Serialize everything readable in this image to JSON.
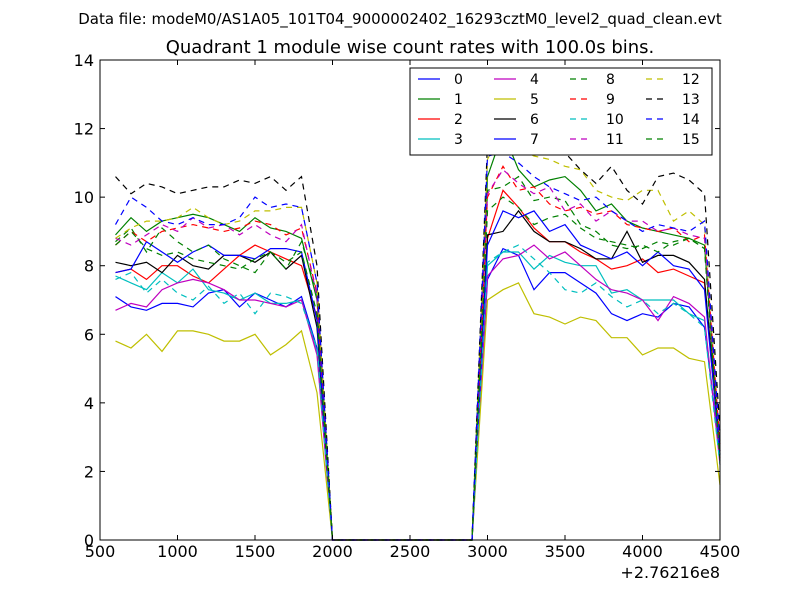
{
  "chart_data": {
    "type": "line",
    "suptitle": "Data file: modeM0/AS1A05_101T04_9000002402_16293cztM0_level2_quad_clean.evt",
    "title": "Quadrant 1 module wise count rates with 100.0s bins.",
    "xlabel": "",
    "ylabel": "",
    "x_offset_label": "+2.76216e8",
    "xlim": [
      500,
      4500
    ],
    "ylim": [
      0,
      14
    ],
    "xticks": [
      "500",
      "1000",
      "1500",
      "2000",
      "2500",
      "3000",
      "3500",
      "4000",
      "4500"
    ],
    "yticks": [
      "0",
      "2",
      "4",
      "6",
      "8",
      "10",
      "12",
      "14"
    ],
    "legend_position": "top-right",
    "legend_columns": 4,
    "x": [
      600,
      700,
      800,
      900,
      1000,
      1100,
      1200,
      1300,
      1400,
      1500,
      1600,
      1700,
      1800,
      1900,
      2000,
      2100,
      2200,
      2300,
      2400,
      2500,
      2600,
      2700,
      2800,
      2900,
      3000,
      3100,
      3200,
      3300,
      3400,
      3500,
      3600,
      3700,
      3800,
      3900,
      4000,
      4100,
      4200,
      4300,
      4400,
      4500
    ],
    "series": [
      {
        "name": "0",
        "color": "#0000ff",
        "style": "solid",
        "values": [
          7.1,
          6.8,
          6.7,
          6.9,
          6.9,
          6.8,
          7.2,
          7.3,
          6.8,
          7.2,
          7.0,
          6.8,
          7.1,
          5.6,
          0,
          0,
          0,
          0,
          0,
          0,
          0,
          0,
          0,
          0,
          7.6,
          8.5,
          8.3,
          7.3,
          7.8,
          7.8,
          7.5,
          7.2,
          6.6,
          6.4,
          6.6,
          6.5,
          6.9,
          6.8,
          6.2,
          2.5
        ]
      },
      {
        "name": "1",
        "color": "#008000",
        "style": "solid",
        "values": [
          8.9,
          9.4,
          9.0,
          9.3,
          9.4,
          9.5,
          9.4,
          9.2,
          9.0,
          9.4,
          9.1,
          9.0,
          8.8,
          7.0,
          0,
          0,
          0,
          0,
          0,
          0,
          0,
          0,
          0,
          0,
          10.6,
          11.9,
          10.8,
          10.3,
          10.5,
          10.6,
          10.2,
          9.6,
          9.8,
          9.3,
          9.1,
          9.0,
          8.9,
          8.8,
          8.6,
          2.5
        ]
      },
      {
        "name": "2",
        "color": "#ff0000",
        "style": "solid",
        "values": [
          7.8,
          7.9,
          7.6,
          8.0,
          8.0,
          7.7,
          7.5,
          7.9,
          8.3,
          8.6,
          8.4,
          8.2,
          8.0,
          6.5,
          0,
          0,
          0,
          0,
          0,
          0,
          0,
          0,
          0,
          0,
          8.8,
          10.2,
          9.7,
          9.1,
          8.7,
          8.7,
          8.4,
          8.2,
          7.9,
          8.0,
          8.2,
          7.8,
          7.9,
          7.7,
          7.5,
          2.4
        ]
      },
      {
        "name": "3",
        "color": "#00bfbf",
        "style": "solid",
        "values": [
          7.7,
          7.5,
          7.3,
          7.8,
          7.5,
          7.9,
          7.3,
          7.2,
          7.0,
          7.2,
          6.9,
          6.9,
          7.0,
          5.5,
          0,
          0,
          0,
          0,
          0,
          0,
          0,
          0,
          0,
          0,
          8.0,
          8.4,
          8.4,
          7.9,
          8.3,
          8.1,
          8.0,
          8.0,
          7.2,
          7.3,
          7.0,
          7.0,
          7.0,
          6.6,
          6.4,
          2.3
        ]
      },
      {
        "name": "4",
        "color": "#bf00bf",
        "style": "solid",
        "values": [
          6.7,
          6.9,
          6.8,
          7.3,
          7.5,
          7.6,
          7.5,
          7.3,
          7.0,
          7.0,
          6.9,
          6.8,
          7.0,
          5.4,
          0,
          0,
          0,
          0,
          0,
          0,
          0,
          0,
          0,
          0,
          7.7,
          8.2,
          8.3,
          8.6,
          8.2,
          8.4,
          8.0,
          7.6,
          7.3,
          7.2,
          7.0,
          6.4,
          7.1,
          6.9,
          6.5,
          2.2
        ]
      },
      {
        "name": "5",
        "color": "#bfbf00",
        "style": "solid",
        "values": [
          5.8,
          5.6,
          6.0,
          5.5,
          6.1,
          6.1,
          6.0,
          5.8,
          5.8,
          6.0,
          5.4,
          5.7,
          6.1,
          4.3,
          0,
          0,
          0,
          0,
          0,
          0,
          0,
          0,
          0,
          0,
          7.0,
          7.3,
          7.5,
          6.6,
          6.5,
          6.3,
          6.5,
          6.4,
          5.9,
          5.9,
          5.4,
          5.6,
          5.6,
          5.3,
          5.2,
          1.6
        ]
      },
      {
        "name": "6",
        "color": "#000000",
        "style": "solid",
        "values": [
          8.1,
          8.0,
          8.1,
          7.8,
          8.3,
          8.0,
          7.9,
          8.3,
          8.3,
          8.1,
          8.4,
          7.9,
          8.3,
          6.2,
          0,
          0,
          0,
          0,
          0,
          0,
          0,
          0,
          0,
          0,
          8.9,
          9.0,
          9.6,
          9.0,
          8.7,
          8.7,
          8.5,
          8.2,
          8.2,
          9.0,
          8.1,
          8.3,
          8.3,
          8.1,
          7.6,
          2.6
        ]
      },
      {
        "name": "7",
        "color": "#0000ff",
        "style": "solid",
        "values": [
          7.8,
          7.9,
          8.7,
          8.4,
          8.1,
          8.4,
          8.6,
          8.3,
          8.3,
          8.2,
          8.5,
          8.5,
          8.4,
          6.4,
          0,
          0,
          0,
          0,
          0,
          0,
          0,
          0,
          0,
          0,
          8.6,
          9.6,
          9.4,
          9.6,
          9.0,
          9.2,
          8.6,
          8.4,
          8.2,
          8.4,
          8.0,
          8.4,
          8.0,
          7.9,
          7.3,
          2.5
        ]
      },
      {
        "name": "8",
        "color": "#008000",
        "style": "dashed",
        "values": [
          8.7,
          9.1,
          8.4,
          9.1,
          8.7,
          8.4,
          8.6,
          8.2,
          8.0,
          7.8,
          8.4,
          7.9,
          8.7,
          7.2,
          0,
          0,
          0,
          0,
          0,
          0,
          0,
          0,
          0,
          0,
          10.2,
          10.3,
          10.6,
          9.9,
          10.0,
          9.9,
          9.2,
          9.0,
          8.6,
          8.5,
          8.6,
          8.4,
          8.7,
          8.8,
          8.5,
          2.6
        ]
      },
      {
        "name": "9",
        "color": "#ff0000",
        "style": "dashed",
        "values": [
          8.6,
          9.0,
          8.7,
          9.0,
          9.1,
          9.2,
          9.1,
          9.0,
          9.1,
          9.3,
          9.2,
          8.9,
          9.1,
          7.2,
          0,
          0,
          0,
          0,
          0,
          0,
          0,
          0,
          0,
          0,
          10.0,
          10.9,
          10.2,
          10.3,
          9.8,
          9.6,
          9.7,
          9.5,
          9.6,
          9.2,
          9.1,
          9.0,
          9.1,
          8.7,
          8.9,
          2.8
        ]
      },
      {
        "name": "10",
        "color": "#00bfbf",
        "style": "dashed",
        "values": [
          7.6,
          7.8,
          7.2,
          7.6,
          7.2,
          7.0,
          7.4,
          6.9,
          7.2,
          6.6,
          7.2,
          7.1,
          6.9,
          5.6,
          0,
          0,
          0,
          0,
          0,
          0,
          0,
          0,
          0,
          0,
          8.1,
          8.4,
          8.6,
          8.2,
          7.8,
          7.3,
          7.2,
          7.5,
          7.1,
          6.8,
          7.0,
          6.6,
          6.9,
          6.6,
          6.2,
          2.2
        ]
      },
      {
        "name": "11",
        "color": "#bf00bf",
        "style": "dashed",
        "values": [
          8.8,
          8.6,
          8.9,
          9.2,
          9.0,
          9.4,
          9.1,
          9.2,
          8.9,
          9.2,
          8.9,
          8.7,
          9.2,
          7.1,
          0,
          0,
          0,
          0,
          0,
          0,
          0,
          0,
          0,
          0,
          10.1,
          10.8,
          10.4,
          10.1,
          10.3,
          9.6,
          9.8,
          9.3,
          9.6,
          9.3,
          9.3,
          9.0,
          9.1,
          8.9,
          8.8,
          2.6
        ]
      },
      {
        "name": "12",
        "color": "#bfbf00",
        "style": "dashed",
        "values": [
          8.8,
          9.1,
          9.3,
          9.3,
          9.4,
          9.7,
          9.4,
          9.2,
          9.3,
          9.6,
          9.6,
          9.7,
          9.7,
          7.5,
          0,
          0,
          0,
          0,
          0,
          0,
          0,
          0,
          0,
          0,
          11.1,
          12.0,
          11.4,
          11.2,
          11.1,
          10.9,
          10.8,
          10.2,
          10.0,
          9.9,
          10.2,
          10.2,
          9.3,
          9.6,
          9.2,
          2.9
        ]
      },
      {
        "name": "13",
        "color": "#000000",
        "style": "dashed",
        "values": [
          10.6,
          10.1,
          10.4,
          10.3,
          10.1,
          10.2,
          10.3,
          10.3,
          10.5,
          10.4,
          10.6,
          10.2,
          10.6,
          8.0,
          0,
          0,
          0,
          0,
          0,
          0,
          0,
          0,
          0,
          0,
          11.6,
          12.8,
          11.9,
          11.8,
          12.1,
          11.3,
          10.8,
          10.4,
          10.9,
          10.2,
          9.8,
          10.6,
          10.7,
          10.5,
          10.1,
          3.2
        ]
      },
      {
        "name": "14",
        "color": "#0000ff",
        "style": "dashed",
        "values": [
          9.2,
          10.0,
          9.7,
          9.3,
          9.2,
          9.4,
          9.2,
          9.2,
          9.4,
          10.0,
          9.7,
          9.8,
          9.7,
          7.5,
          0,
          0,
          0,
          0,
          0,
          0,
          0,
          0,
          0,
          0,
          11.2,
          11.3,
          11.0,
          10.6,
          10.3,
          10.1,
          9.9,
          10.0,
          9.6,
          9.3,
          9.0,
          9.2,
          9.1,
          9.0,
          9.3,
          2.8
        ]
      },
      {
        "name": "15",
        "color": "#008000",
        "style": "dashed",
        "values": [
          8.6,
          9.0,
          8.5,
          8.3,
          8.4,
          8.2,
          8.1,
          8.0,
          7.9,
          8.2,
          8.4,
          8.1,
          8.4,
          6.6,
          0,
          0,
          0,
          0,
          0,
          0,
          0,
          0,
          0,
          0,
          9.6,
          10.0,
          9.7,
          9.2,
          9.4,
          9.5,
          9.1,
          8.8,
          8.7,
          8.6,
          8.5,
          8.7,
          8.6,
          8.8,
          8.5,
          2.3
        ]
      }
    ]
  }
}
